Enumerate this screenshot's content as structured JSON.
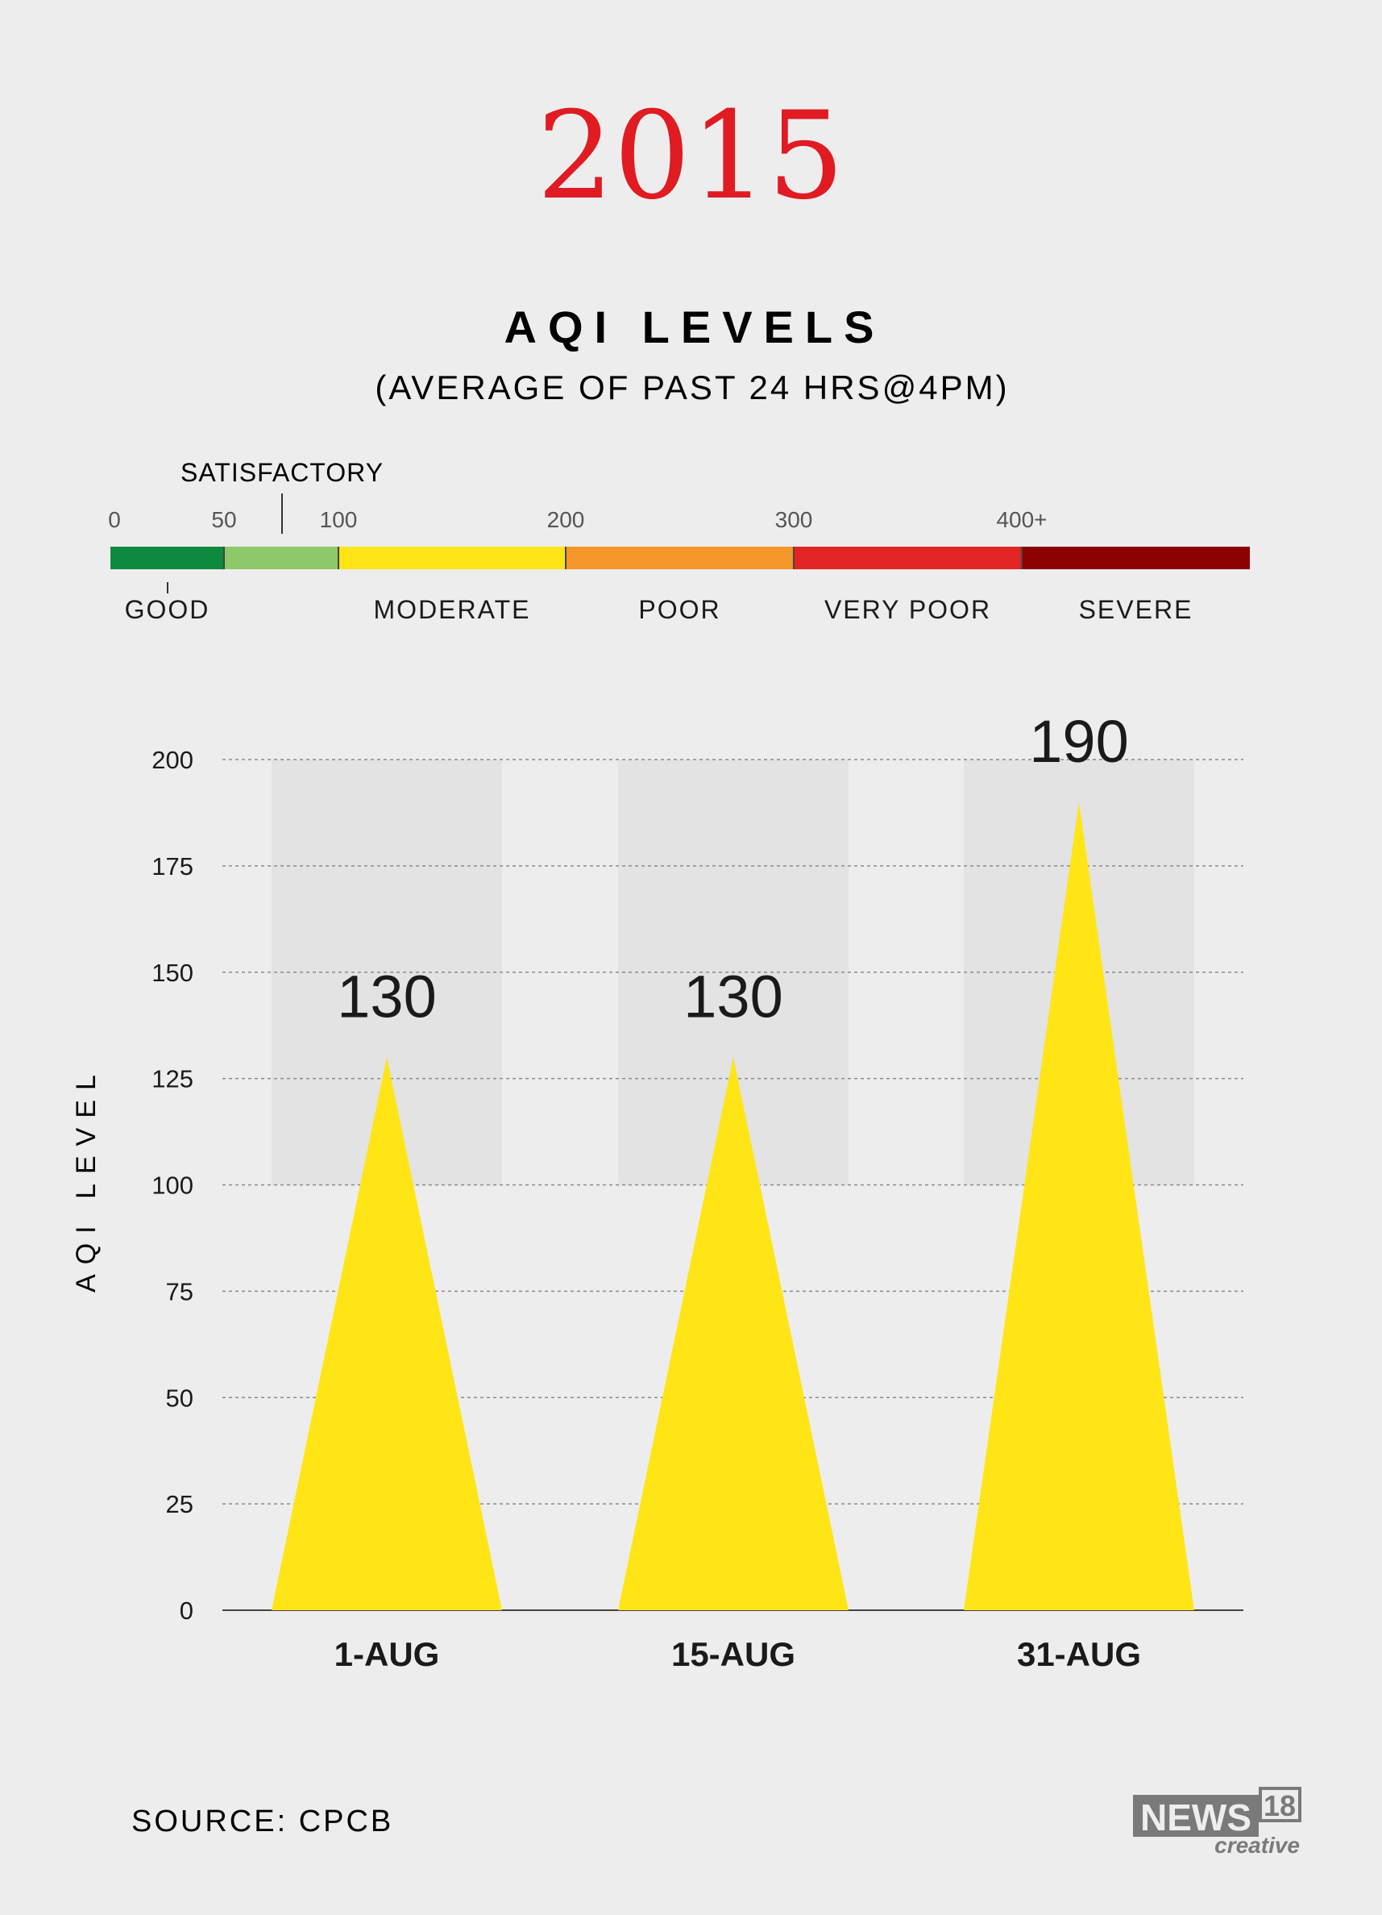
{
  "header": {
    "year": "2015",
    "title": "AQI LEVELS",
    "subtitle": "(AVERAGE OF PAST 24 HRS@4PM)"
  },
  "scale": {
    "ticks": [
      "0",
      "50",
      "100",
      "200",
      "300",
      "400+"
    ],
    "satisfactory_label": "SATISFACTORY",
    "bands": [
      {
        "label": "GOOD",
        "color": "#0e8a3e"
      },
      {
        "label": "",
        "color": "#8dc96b"
      },
      {
        "label": "MODERATE",
        "color": "#ffe515"
      },
      {
        "label": "POOR",
        "color": "#f5962a"
      },
      {
        "label": "VERY POOR",
        "color": "#e22424"
      },
      {
        "label": "SEVERE",
        "color": "#8b0000"
      }
    ]
  },
  "chart_data": {
    "type": "bar",
    "categories": [
      "1-AUG",
      "15-AUG",
      "31-AUG"
    ],
    "values": [
      130,
      130,
      190
    ],
    "ylabel": "AQI LEVEL",
    "ylim": [
      0,
      200
    ],
    "yticks": [
      0,
      25,
      50,
      75,
      100,
      125,
      150,
      175,
      200
    ],
    "grid": true,
    "bar_color": "#ffe515",
    "bar_shape": "triangle"
  },
  "footer": {
    "source": "SOURCE: CPCB",
    "logo_text": "NEWS",
    "logo_number": "18",
    "logo_sub": "creative"
  },
  "colors": {
    "year": "#e01b22",
    "text": "#1a1a1a",
    "grid": "#888888"
  }
}
